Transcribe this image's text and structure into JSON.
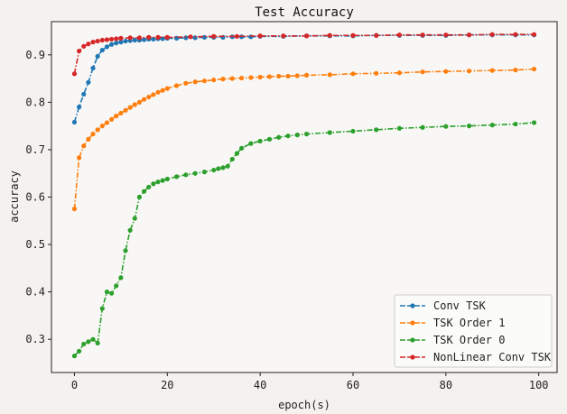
{
  "chart_data": {
    "type": "line",
    "title": "Test Accuracy",
    "xlabel": "epoch(s)",
    "ylabel": "accuracy",
    "xlim": [
      -4.95,
      103.95
    ],
    "ylim": [
      0.23,
      0.97
    ],
    "xticks": [
      0,
      20,
      40,
      60,
      80,
      100
    ],
    "yticks": [
      0.3,
      0.4,
      0.5,
      0.6,
      0.7,
      0.8,
      0.9
    ],
    "grid": false,
    "legend_position": "lower-right",
    "series": [
      {
        "name": "Conv TSK",
        "color": "#1f77b4",
        "x": [
          0,
          1,
          2,
          3,
          4,
          5,
          6,
          7,
          8,
          9,
          10,
          11,
          12,
          13,
          14,
          15,
          16,
          17,
          18,
          19,
          20,
          22,
          24,
          26,
          28,
          30,
          32,
          34,
          36,
          38,
          40,
          45,
          50,
          55,
          60,
          65,
          70,
          75,
          80,
          85,
          90,
          95,
          99
        ],
        "y": [
          0.758,
          0.79,
          0.817,
          0.842,
          0.872,
          0.897,
          0.91,
          0.917,
          0.922,
          0.925,
          0.927,
          0.929,
          0.93,
          0.931,
          0.931,
          0.932,
          0.933,
          0.933,
          0.934,
          0.934,
          0.935,
          0.935,
          0.936,
          0.936,
          0.937,
          0.937,
          0.937,
          0.938,
          0.938,
          0.938,
          0.939,
          0.939,
          0.94,
          0.94,
          0.94,
          0.941,
          0.941,
          0.941,
          0.941,
          0.942,
          0.942,
          0.942,
          0.942
        ]
      },
      {
        "name": "TSK Order 1",
        "color": "#ff7f0e",
        "x": [
          0,
          1,
          2,
          3,
          4,
          5,
          6,
          7,
          8,
          9,
          10,
          11,
          12,
          13,
          14,
          15,
          16,
          17,
          18,
          19,
          20,
          22,
          24,
          26,
          28,
          30,
          32,
          34,
          36,
          38,
          40,
          42,
          44,
          46,
          48,
          50,
          55,
          60,
          65,
          70,
          75,
          80,
          85,
          90,
          95,
          99
        ],
        "y": [
          0.575,
          0.683,
          0.708,
          0.722,
          0.733,
          0.742,
          0.75,
          0.757,
          0.764,
          0.771,
          0.777,
          0.783,
          0.789,
          0.795,
          0.8,
          0.806,
          0.811,
          0.816,
          0.821,
          0.825,
          0.829,
          0.835,
          0.84,
          0.843,
          0.845,
          0.847,
          0.849,
          0.85,
          0.851,
          0.852,
          0.853,
          0.854,
          0.855,
          0.855,
          0.856,
          0.857,
          0.858,
          0.86,
          0.861,
          0.862,
          0.864,
          0.865,
          0.866,
          0.867,
          0.868,
          0.87
        ]
      },
      {
        "name": "TSK Order 0",
        "color": "#2ca02c",
        "x": [
          0,
          1,
          2,
          3,
          4,
          5,
          6,
          7,
          8,
          9,
          10,
          11,
          12,
          13,
          14,
          15,
          16,
          17,
          18,
          19,
          20,
          22,
          24,
          26,
          28,
          30,
          31,
          32,
          33,
          34,
          35,
          36,
          38,
          40,
          42,
          44,
          46,
          48,
          50,
          55,
          60,
          65,
          70,
          75,
          80,
          85,
          90,
          95,
          99
        ],
        "y": [
          0.265,
          0.275,
          0.29,
          0.295,
          0.3,
          0.292,
          0.365,
          0.4,
          0.397,
          0.413,
          0.43,
          0.487,
          0.53,
          0.555,
          0.6,
          0.612,
          0.621,
          0.628,
          0.632,
          0.635,
          0.638,
          0.643,
          0.647,
          0.65,
          0.653,
          0.657,
          0.66,
          0.662,
          0.665,
          0.68,
          0.692,
          0.703,
          0.713,
          0.718,
          0.722,
          0.726,
          0.729,
          0.731,
          0.733,
          0.736,
          0.739,
          0.742,
          0.745,
          0.747,
          0.749,
          0.75,
          0.752,
          0.754,
          0.757
        ]
      },
      {
        "name": "NonLinear Conv TSK",
        "color": "#d62728",
        "x": [
          0,
          1,
          2,
          3,
          4,
          5,
          6,
          7,
          8,
          9,
          10,
          12,
          14,
          16,
          18,
          20,
          25,
          30,
          35,
          40,
          45,
          50,
          55,
          60,
          65,
          70,
          75,
          80,
          85,
          90,
          95,
          99
        ],
        "y": [
          0.86,
          0.908,
          0.918,
          0.923,
          0.927,
          0.929,
          0.931,
          0.932,
          0.933,
          0.934,
          0.935,
          0.936,
          0.936,
          0.937,
          0.937,
          0.937,
          0.938,
          0.939,
          0.939,
          0.94,
          0.94,
          0.94,
          0.941,
          0.941,
          0.941,
          0.942,
          0.942,
          0.942,
          0.942,
          0.943,
          0.943,
          0.943
        ]
      }
    ]
  }
}
